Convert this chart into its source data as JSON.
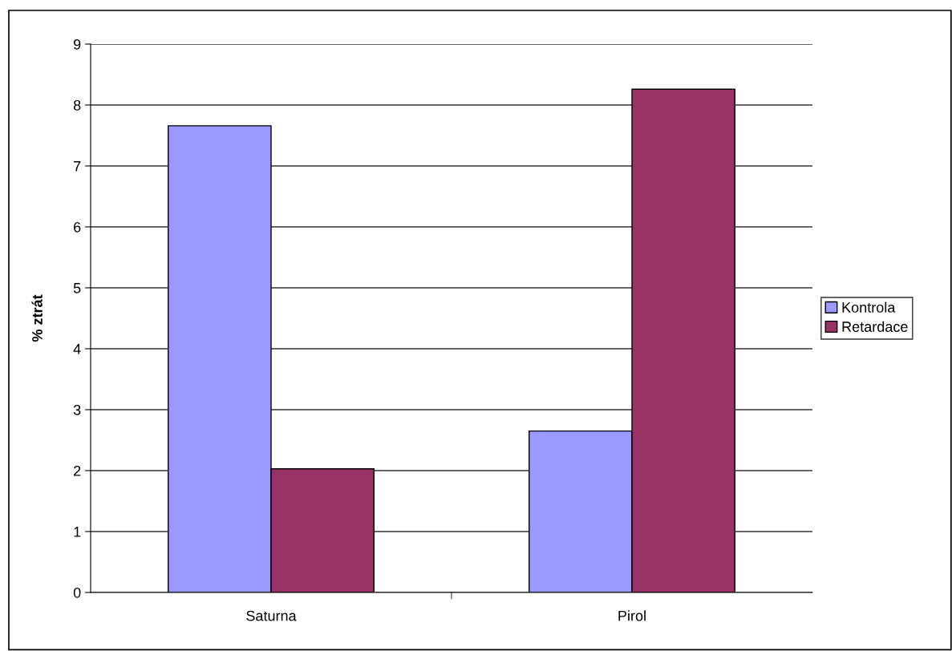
{
  "chart_data": {
    "type": "bar",
    "ylabel": "% ztrát",
    "categories": [
      "Saturna",
      "Pirol"
    ],
    "series": [
      {
        "name": "Kontrola",
        "color": "#9999ff",
        "values": [
          7.66,
          2.65
        ]
      },
      {
        "name": "Retardace",
        "color": "#993366",
        "values": [
          2.03,
          8.26
        ]
      }
    ],
    "ylim": [
      0,
      9
    ],
    "yticks": [
      0,
      1,
      2,
      3,
      4,
      5,
      6,
      7,
      8,
      9
    ],
    "grid": "y",
    "legend": "right"
  }
}
